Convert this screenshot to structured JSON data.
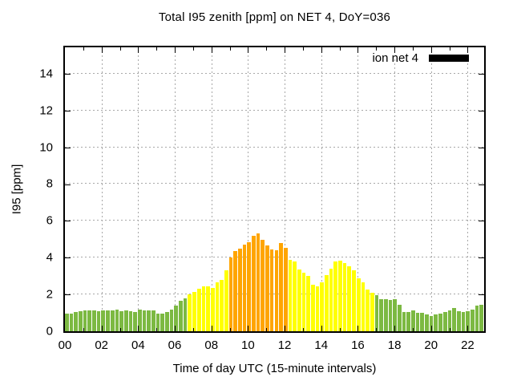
{
  "title": "Total I95 zenith [ppm] on NET 4, DoY=036",
  "legend": {
    "label": "ion net 4",
    "swatch_color": "#000000"
  },
  "chart_data": {
    "type": "bar",
    "title": "Total I95 zenith [ppm] on NET 4, DoY=036",
    "xlabel": "Time of day UTC (15-minute intervals)",
    "ylabel": "I95 [ppm]",
    "series_name": "ion net 4",
    "interval_minutes": 15,
    "ylim": [
      0,
      15.43
    ],
    "xlim_hours": [
      0,
      22.9
    ],
    "y_ticks": [
      0,
      2,
      4,
      6,
      8,
      10,
      12,
      14
    ],
    "x_tick_hours": [
      0,
      2,
      4,
      6,
      8,
      10,
      12,
      14,
      16,
      18,
      20,
      22
    ],
    "x_tick_labels": [
      "00",
      "02",
      "04",
      "06",
      "08",
      "10",
      "12",
      "14",
      "16",
      "18",
      "20",
      "22"
    ],
    "grid": true,
    "legend_position": "top-right",
    "colors": {
      "low": "#7cb942",
      "mid": "#ffff00",
      "high": "#ffa500",
      "legend_swatch": "#000000",
      "grid": "#a8a8a8",
      "axis": "#000000"
    },
    "color_thresholds": {
      "mid_from": 2.0,
      "high_from": 4.0
    },
    "times": [
      "00:00",
      "00:15",
      "00:30",
      "00:45",
      "01:00",
      "01:15",
      "01:30",
      "01:45",
      "02:00",
      "02:15",
      "02:30",
      "02:45",
      "03:00",
      "03:15",
      "03:30",
      "03:45",
      "04:00",
      "04:15",
      "04:30",
      "04:45",
      "05:00",
      "05:15",
      "05:30",
      "05:45",
      "06:00",
      "06:15",
      "06:30",
      "06:45",
      "07:00",
      "07:15",
      "07:30",
      "07:45",
      "08:00",
      "08:15",
      "08:30",
      "08:45",
      "09:00",
      "09:15",
      "09:30",
      "09:45",
      "10:00",
      "10:15",
      "10:30",
      "10:45",
      "11:00",
      "11:15",
      "11:30",
      "11:45",
      "12:00",
      "12:15",
      "12:30",
      "12:45",
      "13:00",
      "13:15",
      "13:30",
      "13:45",
      "14:00",
      "14:15",
      "14:30",
      "14:45",
      "15:00",
      "15:15",
      "15:30",
      "15:45",
      "16:00",
      "16:15",
      "16:30",
      "16:45",
      "17:00",
      "17:15",
      "17:30",
      "17:45",
      "18:00",
      "18:15",
      "18:30",
      "18:45",
      "19:00",
      "19:15",
      "19:30",
      "19:45",
      "20:00",
      "20:15",
      "20:30",
      "20:45",
      "21:00",
      "21:15",
      "21:30",
      "21:45",
      "22:00",
      "22:15",
      "22:30",
      "22:45"
    ],
    "values": [
      0.95,
      0.95,
      1.05,
      1.1,
      1.12,
      1.12,
      1.12,
      1.1,
      1.15,
      1.12,
      1.15,
      1.2,
      1.1,
      1.15,
      1.1,
      1.05,
      1.2,
      1.12,
      1.15,
      1.12,
      0.98,
      0.98,
      1.05,
      1.2,
      1.4,
      1.65,
      1.8,
      2.0,
      2.15,
      2.3,
      2.45,
      2.45,
      2.35,
      2.65,
      2.8,
      3.3,
      4.0,
      4.35,
      4.5,
      4.7,
      4.85,
      5.2,
      5.3,
      4.95,
      4.65,
      4.45,
      4.4,
      4.8,
      4.55,
      3.9,
      3.8,
      3.35,
      3.2,
      3.0,
      2.55,
      2.45,
      2.65,
      3.05,
      3.4,
      3.8,
      3.85,
      3.7,
      3.55,
      3.3,
      2.9,
      2.65,
      2.25,
      2.1,
      1.95,
      1.75,
      1.75,
      1.7,
      1.75,
      1.45,
      1.05,
      1.05,
      1.15,
      1.0,
      1.0,
      0.9,
      0.85,
      0.92,
      0.97,
      1.05,
      1.15,
      1.25,
      1.1,
      1.05,
      1.1,
      1.2,
      1.4,
      1.45
    ]
  }
}
